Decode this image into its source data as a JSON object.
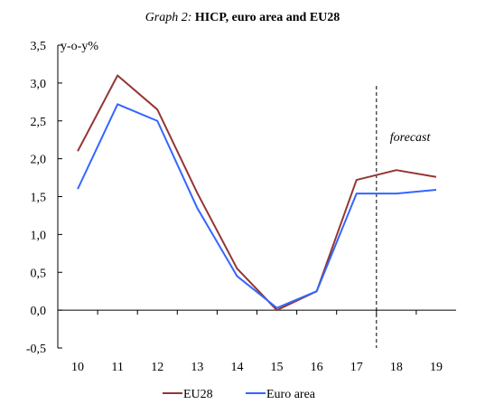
{
  "title": {
    "prefix": "Graph 2:",
    "main": "HICP, euro area and EU28"
  },
  "chart_data": {
    "type": "line",
    "x": [
      "10",
      "11",
      "12",
      "13",
      "14",
      "15",
      "16",
      "17",
      "18",
      "19"
    ],
    "series": [
      {
        "name": "EU28",
        "color": "#943634",
        "values": [
          2.1,
          3.1,
          2.65,
          1.55,
          0.55,
          0.0,
          0.25,
          1.72,
          1.85,
          1.76
        ]
      },
      {
        "name": "Euro area",
        "color": "#3366ff",
        "values": [
          1.6,
          2.72,
          2.5,
          1.35,
          0.45,
          0.03,
          0.25,
          1.54,
          1.54,
          1.59
        ]
      }
    ],
    "y_ticks": [
      "3,5",
      "3,0",
      "2,5",
      "2,0",
      "1,5",
      "1,0",
      "0,5",
      "0,0",
      "-0,5"
    ],
    "ylim": [
      -0.5,
      3.5
    ],
    "ylabel": "y-o-y%",
    "annotation": "forecast",
    "forecast_divider_after": "17",
    "legend_position": "bottom",
    "grid": false
  }
}
